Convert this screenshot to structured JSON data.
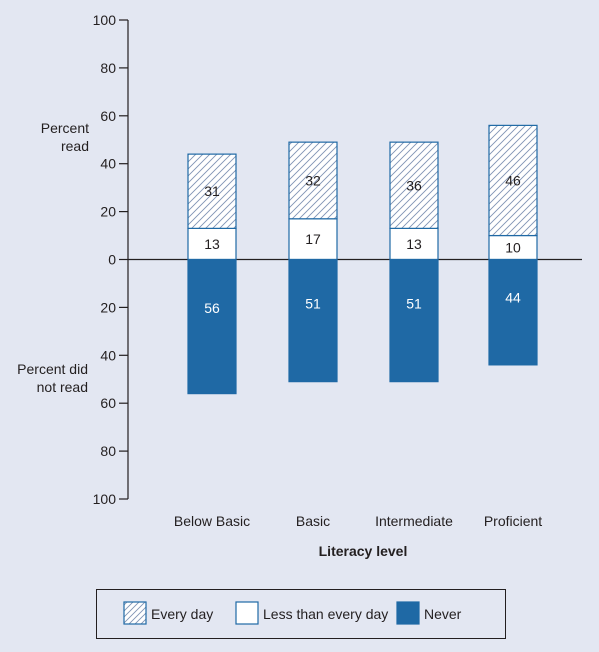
{
  "chart_data": {
    "type": "bar",
    "stacked": true,
    "diverging": true,
    "xlabel": "Literacy level",
    "ylabel_top": [
      "Percent",
      "read"
    ],
    "ylabel_bottom": [
      "Percent did",
      "not read"
    ],
    "ylim": [
      -100,
      100
    ],
    "y_ticks": [
      100,
      80,
      60,
      40,
      20,
      0,
      -20,
      -40,
      -60,
      -80,
      -100
    ],
    "y_tick_labels": [
      "100",
      "80",
      "60",
      "40",
      "20",
      "0",
      "20",
      "40",
      "60",
      "80",
      "100"
    ],
    "categories": [
      "Below Basic",
      "Basic",
      "Intermediate",
      "Proficient"
    ],
    "series": [
      {
        "name": "Less than every day",
        "values": [
          13,
          17,
          13,
          10
        ],
        "direction": "up",
        "color": "#ffffff",
        "pattern": "none"
      },
      {
        "name": "Every day",
        "values": [
          31,
          32,
          36,
          46
        ],
        "direction": "up",
        "color": "#ffffff",
        "pattern": "hatch"
      },
      {
        "name": "Never",
        "values": [
          56,
          51,
          51,
          44
        ],
        "direction": "down",
        "color": "#1f69a5",
        "pattern": "none"
      }
    ],
    "legend": {
      "placement": "bottom",
      "items": [
        {
          "label": "Every day",
          "swatch": "hatch"
        },
        {
          "label": "Less than every day",
          "swatch": "white"
        },
        {
          "label": "Never",
          "swatch": "blue"
        }
      ]
    },
    "colors": {
      "background": "#e3e7f2",
      "bar_outline": "#1f69a5",
      "never_fill": "#1f69a5",
      "axis": "#231f20"
    }
  }
}
